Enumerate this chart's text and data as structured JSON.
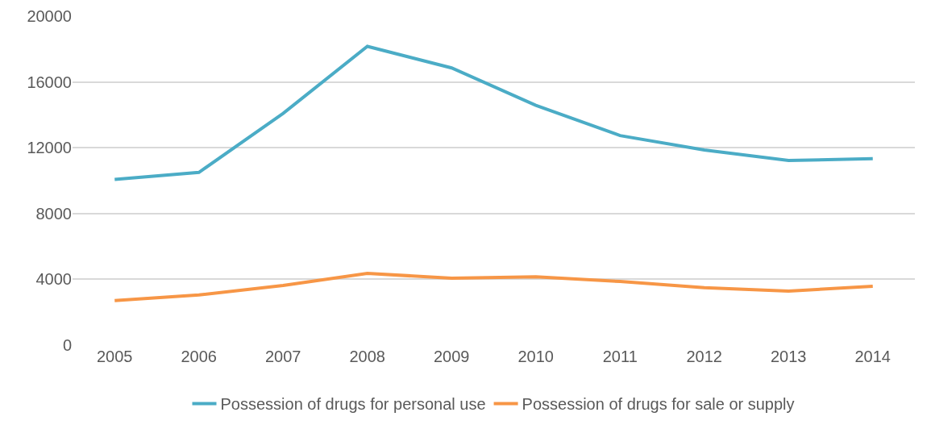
{
  "chart_data": {
    "type": "line",
    "categories": [
      "2005",
      "2006",
      "2007",
      "2008",
      "2009",
      "2010",
      "2011",
      "2012",
      "2013",
      "2014"
    ],
    "series": [
      {
        "name": "Possession of drugs for personal use",
        "color": "#4bacc6",
        "values": [
          10070,
          10500,
          14090,
          18160,
          16850,
          14580,
          12740,
          11860,
          11230,
          11330
        ]
      },
      {
        "name": "Possession of drugs for sale or supply",
        "color": "#f79646",
        "values": [
          2710,
          3050,
          3630,
          4360,
          4070,
          4160,
          3870,
          3490,
          3290,
          3580
        ]
      }
    ],
    "ylim": [
      0,
      20000
    ],
    "yticks": [
      0,
      4000,
      8000,
      12000,
      16000,
      20000
    ],
    "grid": "y",
    "legend": "bottom",
    "marker": "none",
    "line_style": "solid"
  }
}
